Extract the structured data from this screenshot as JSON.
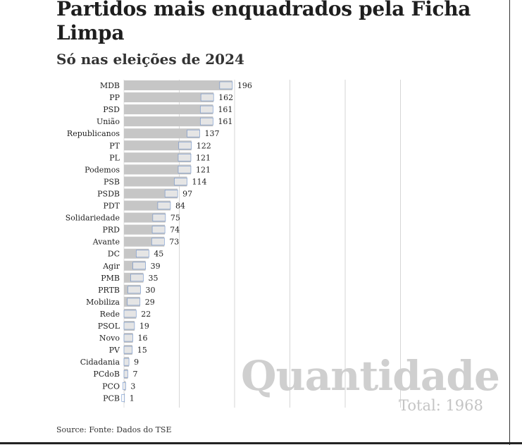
{
  "header": {
    "title": "Partidos mais enquadrados pela Ficha Limpa",
    "subtitle": "Só nas eleições de 2024"
  },
  "footer": {
    "source": "Source: Fonte: Dados do TSE"
  },
  "watermark": {
    "label": "Quantidade",
    "total": "Total: 1968"
  },
  "colors": {
    "bar": "#c6c6c6",
    "grid": "#d6d6d6",
    "text": "#222222",
    "watermark": "#cfcfcf"
  },
  "chart_data": {
    "type": "bar",
    "orientation": "horizontal",
    "title": "Partidos mais enquadrados pela Ficha Limpa",
    "subtitle": "Só nas eleições de 2024",
    "categories": [
      "MDB",
      "PP",
      "PSD",
      "União",
      "Republicanos",
      "PT",
      "PL",
      "Podemos",
      "PSB",
      "PSDB",
      "PDT",
      "Solidariedade",
      "PRD",
      "Avante",
      "DC",
      "Agir",
      "PMB",
      "PRTB",
      "Mobiliza",
      "Rede",
      "PSOL",
      "Novo",
      "PV",
      "Cidadania",
      "PCdoB",
      "PCO",
      "PCB"
    ],
    "values": [
      196,
      162,
      161,
      161,
      137,
      122,
      121,
      121,
      114,
      97,
      84,
      75,
      74,
      73,
      45,
      39,
      35,
      30,
      29,
      22,
      19,
      16,
      15,
      9,
      7,
      3,
      1
    ],
    "xlim": [
      0,
      600
    ],
    "grid": true,
    "total": 1968,
    "value_labels": true
  }
}
